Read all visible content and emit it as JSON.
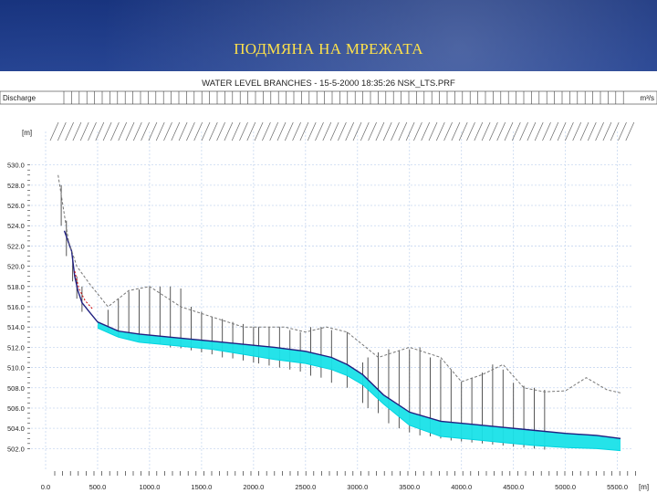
{
  "slide": {
    "title": "ПОДМЯНА НА МРЕЖАТА"
  },
  "chart_header": {
    "title": "WATER LEVEL BRANCHES - 15-5-2000 18:35:26 NSK_LTS.PRF",
    "left_label": "Discharge",
    "right_label": "m³/s"
  },
  "chart_data": {
    "type": "line",
    "ylabel": "[m]",
    "xlabel": "[m]",
    "xlim": [
      0,
      5600
    ],
    "ylim": [
      500.5,
      531.5
    ],
    "grid": true,
    "x_ticks": [
      "0.0",
      "500.0",
      "1000.0",
      "1500.0",
      "2000.0",
      "2500.0",
      "3000.0",
      "3500.0",
      "4000.0",
      "4500.0",
      "5000.0",
      "5500.0"
    ],
    "y_ticks": [
      "530.0",
      "528.0",
      "526.0",
      "524.0",
      "522.0",
      "520.0",
      "518.0",
      "516.0",
      "514.0",
      "512.0",
      "510.0",
      "508.0",
      "506.0",
      "504.0",
      "502.0"
    ],
    "series": [
      {
        "role": "water-level",
        "color": "#1f1f80",
        "x": [
          180,
          250,
          280,
          310,
          350,
          420,
          500,
          700,
          900,
          1200,
          1600,
          1900,
          2200,
          2500,
          2750,
          2900,
          3050,
          3250,
          3500,
          3800,
          4100,
          4400,
          4700,
          5000,
          5300,
          5530
        ],
        "y": [
          523.5,
          521.5,
          519.0,
          517.6,
          516.4,
          515.5,
          514.5,
          513.6,
          513.3,
          513.0,
          512.6,
          512.3,
          512.0,
          511.6,
          511.0,
          510.3,
          509.3,
          507.3,
          505.6,
          504.7,
          504.4,
          504.1,
          503.8,
          503.5,
          503.3,
          503.0
        ]
      },
      {
        "role": "bed-bottom",
        "color": "#00d4e0",
        "x": [
          500,
          700,
          900,
          1200,
          1600,
          1900,
          2200,
          2500,
          2750,
          2900,
          3050,
          3250,
          3500,
          3800,
          4100,
          4400,
          4700,
          5000,
          5300,
          5530
        ],
        "y": [
          513.9,
          513.0,
          512.5,
          512.2,
          511.8,
          511.3,
          510.8,
          510.4,
          509.8,
          509.2,
          508.3,
          506.4,
          504.3,
          503.2,
          502.9,
          502.6,
          502.3,
          502.1,
          502.0,
          501.8
        ]
      },
      {
        "role": "bank-top",
        "color": "#777777",
        "x": [
          120,
          220,
          300,
          420,
          600,
          800,
          1000,
          1300,
          1600,
          1900,
          2100,
          2300,
          2500,
          2700,
          2900,
          3200,
          3500,
          3800,
          4000,
          4200,
          4400,
          4600,
          4800,
          5000,
          5200,
          5400,
          5530
        ],
        "y": [
          529.0,
          522.5,
          520.0,
          518.3,
          516.0,
          517.6,
          518.0,
          516.0,
          515.0,
          514.0,
          514.0,
          514.0,
          513.5,
          514.0,
          513.5,
          511.0,
          512.0,
          511.0,
          508.6,
          509.3,
          510.3,
          508.0,
          507.6,
          507.7,
          509.0,
          507.8,
          507.5
        ]
      },
      {
        "role": "initial-level",
        "color": "#cc0000",
        "x": [
          280,
          320,
          380,
          450
        ],
        "y": [
          519.5,
          517.8,
          516.6,
          515.8
        ]
      }
    ],
    "bars": {
      "note": "vertical cross-section lines",
      "x": [
        150,
        200,
        260,
        300,
        350,
        600,
        700,
        800,
        900,
        1000,
        1100,
        1200,
        1300,
        1400,
        1500,
        1600,
        1700,
        1800,
        1900,
        2000,
        2050,
        2150,
        2250,
        2350,
        2450,
        2550,
        2650,
        2750,
        2900,
        3050,
        3100,
        3200,
        3300,
        3400,
        3500,
        3600,
        3700,
        3800,
        3900,
        4000,
        4100,
        4200,
        4300,
        4400,
        4500,
        4600,
        4700,
        4800
      ],
      "top": [
        528.0,
        524.5,
        521.0,
        519.0,
        518.0,
        515.7,
        516.8,
        517.5,
        517.7,
        518.0,
        518.0,
        518.0,
        517.8,
        516.0,
        515.5,
        515.0,
        514.8,
        514.5,
        514.3,
        514.0,
        514.0,
        514.0,
        514.0,
        513.7,
        513.5,
        514.0,
        514.0,
        513.7,
        513.5,
        510.5,
        511.0,
        511.5,
        511.8,
        511.7,
        511.8,
        512.0,
        511.0,
        510.8,
        509.8,
        508.6,
        509.0,
        509.5,
        510.3,
        509.8,
        508.5,
        508.2,
        508.0,
        507.8
      ],
      "bottom": [
        524.0,
        521.0,
        518.5,
        516.8,
        515.5,
        513.6,
        513.0,
        512.8,
        512.6,
        512.4,
        512.3,
        512.0,
        511.9,
        511.7,
        511.5,
        511.3,
        511.0,
        510.9,
        510.7,
        510.5,
        510.4,
        510.2,
        510.0,
        509.8,
        509.6,
        509.2,
        509.0,
        508.5,
        508.0,
        506.5,
        506.0,
        505.5,
        504.5,
        504.0,
        503.6,
        503.3,
        503.2,
        503.0,
        502.8,
        502.7,
        502.6,
        502.5,
        502.4,
        502.3,
        502.2,
        502.1,
        502.0,
        501.9
      ]
    }
  }
}
